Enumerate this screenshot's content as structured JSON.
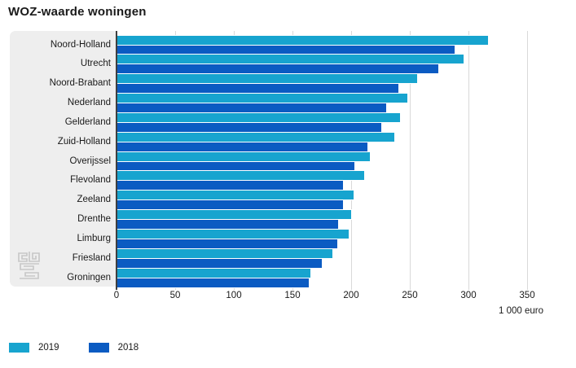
{
  "title": "WOZ-waarde woningen",
  "chart_data": {
    "type": "bar",
    "orientation": "horizontal",
    "title": "WOZ-waarde woningen",
    "unit_label": "1 000 euro",
    "xlim": [
      0,
      350
    ],
    "xticks": [
      0,
      50,
      100,
      150,
      200,
      250,
      300,
      350
    ],
    "grid": true,
    "legend_position": "bottom-left",
    "categories": [
      "Noord-Holland",
      "Utrecht",
      "Noord-Brabant",
      "Nederland",
      "Gelderland",
      "Zuid-Holland",
      "Overijssel",
      "Flevoland",
      "Zeeland",
      "Drenthe",
      "Limburg",
      "Friesland",
      "Groningen"
    ],
    "series": [
      {
        "name": "2019",
        "color": "#17a4cf",
        "values": [
          317,
          296,
          256,
          248,
          242,
          237,
          216,
          211,
          202,
          200,
          198,
          184,
          165
        ]
      },
      {
        "name": "2018",
        "color": "#0b5bc2",
        "values": [
          288,
          274,
          240,
          230,
          226,
          214,
          203,
          193,
          193,
          189,
          188,
          175,
          164
        ]
      }
    ]
  },
  "branding": {
    "logo": "cbs-logo"
  },
  "colors": {
    "panel": "#eeeeee",
    "gridline": "#d9d9d9",
    "axis": "#3f3f3f",
    "text": "#1a1a1a",
    "logo": "#c7c7c7",
    "series_2019": "#17a4cf",
    "series_2018": "#0b5bc2"
  }
}
